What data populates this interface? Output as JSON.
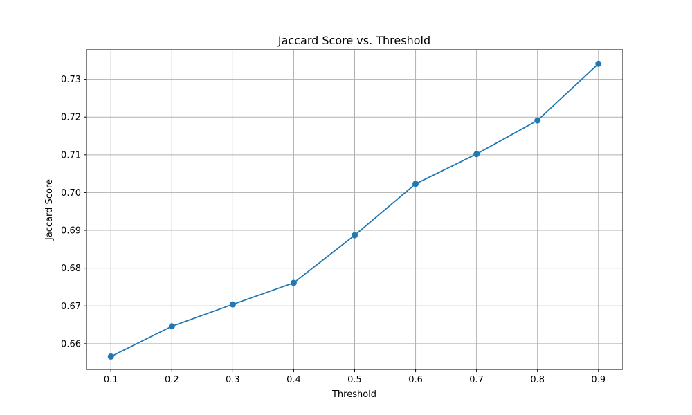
{
  "chart_data": {
    "type": "line",
    "title": "Jaccard Score vs. Threshold",
    "xlabel": "Threshold",
    "ylabel": "Jaccard Score",
    "xlim": [
      0.06,
      0.94
    ],
    "ylim": [
      0.6532,
      0.7378
    ],
    "xticks": [
      0.1,
      0.2,
      0.3,
      0.4,
      0.5,
      0.6,
      0.7,
      0.8,
      0.9
    ],
    "xtick_labels": [
      "0.1",
      "0.2",
      "0.3",
      "0.4",
      "0.5",
      "0.6",
      "0.7",
      "0.8",
      "0.9"
    ],
    "yticks": [
      0.66,
      0.67,
      0.68,
      0.69,
      0.7,
      0.71,
      0.72,
      0.73
    ],
    "ytick_labels": [
      "0.66",
      "0.67",
      "0.68",
      "0.69",
      "0.70",
      "0.71",
      "0.72",
      "0.73"
    ],
    "grid": true,
    "color": "#1f77b4",
    "series": [
      {
        "x": [
          0.1,
          0.2,
          0.3,
          0.4,
          0.5,
          0.6,
          0.7,
          0.8,
          0.9
        ],
        "values": [
          0.6566,
          0.6646,
          0.6704,
          0.6761,
          0.6887,
          0.7023,
          0.7102,
          0.7191,
          0.7341
        ]
      }
    ]
  }
}
